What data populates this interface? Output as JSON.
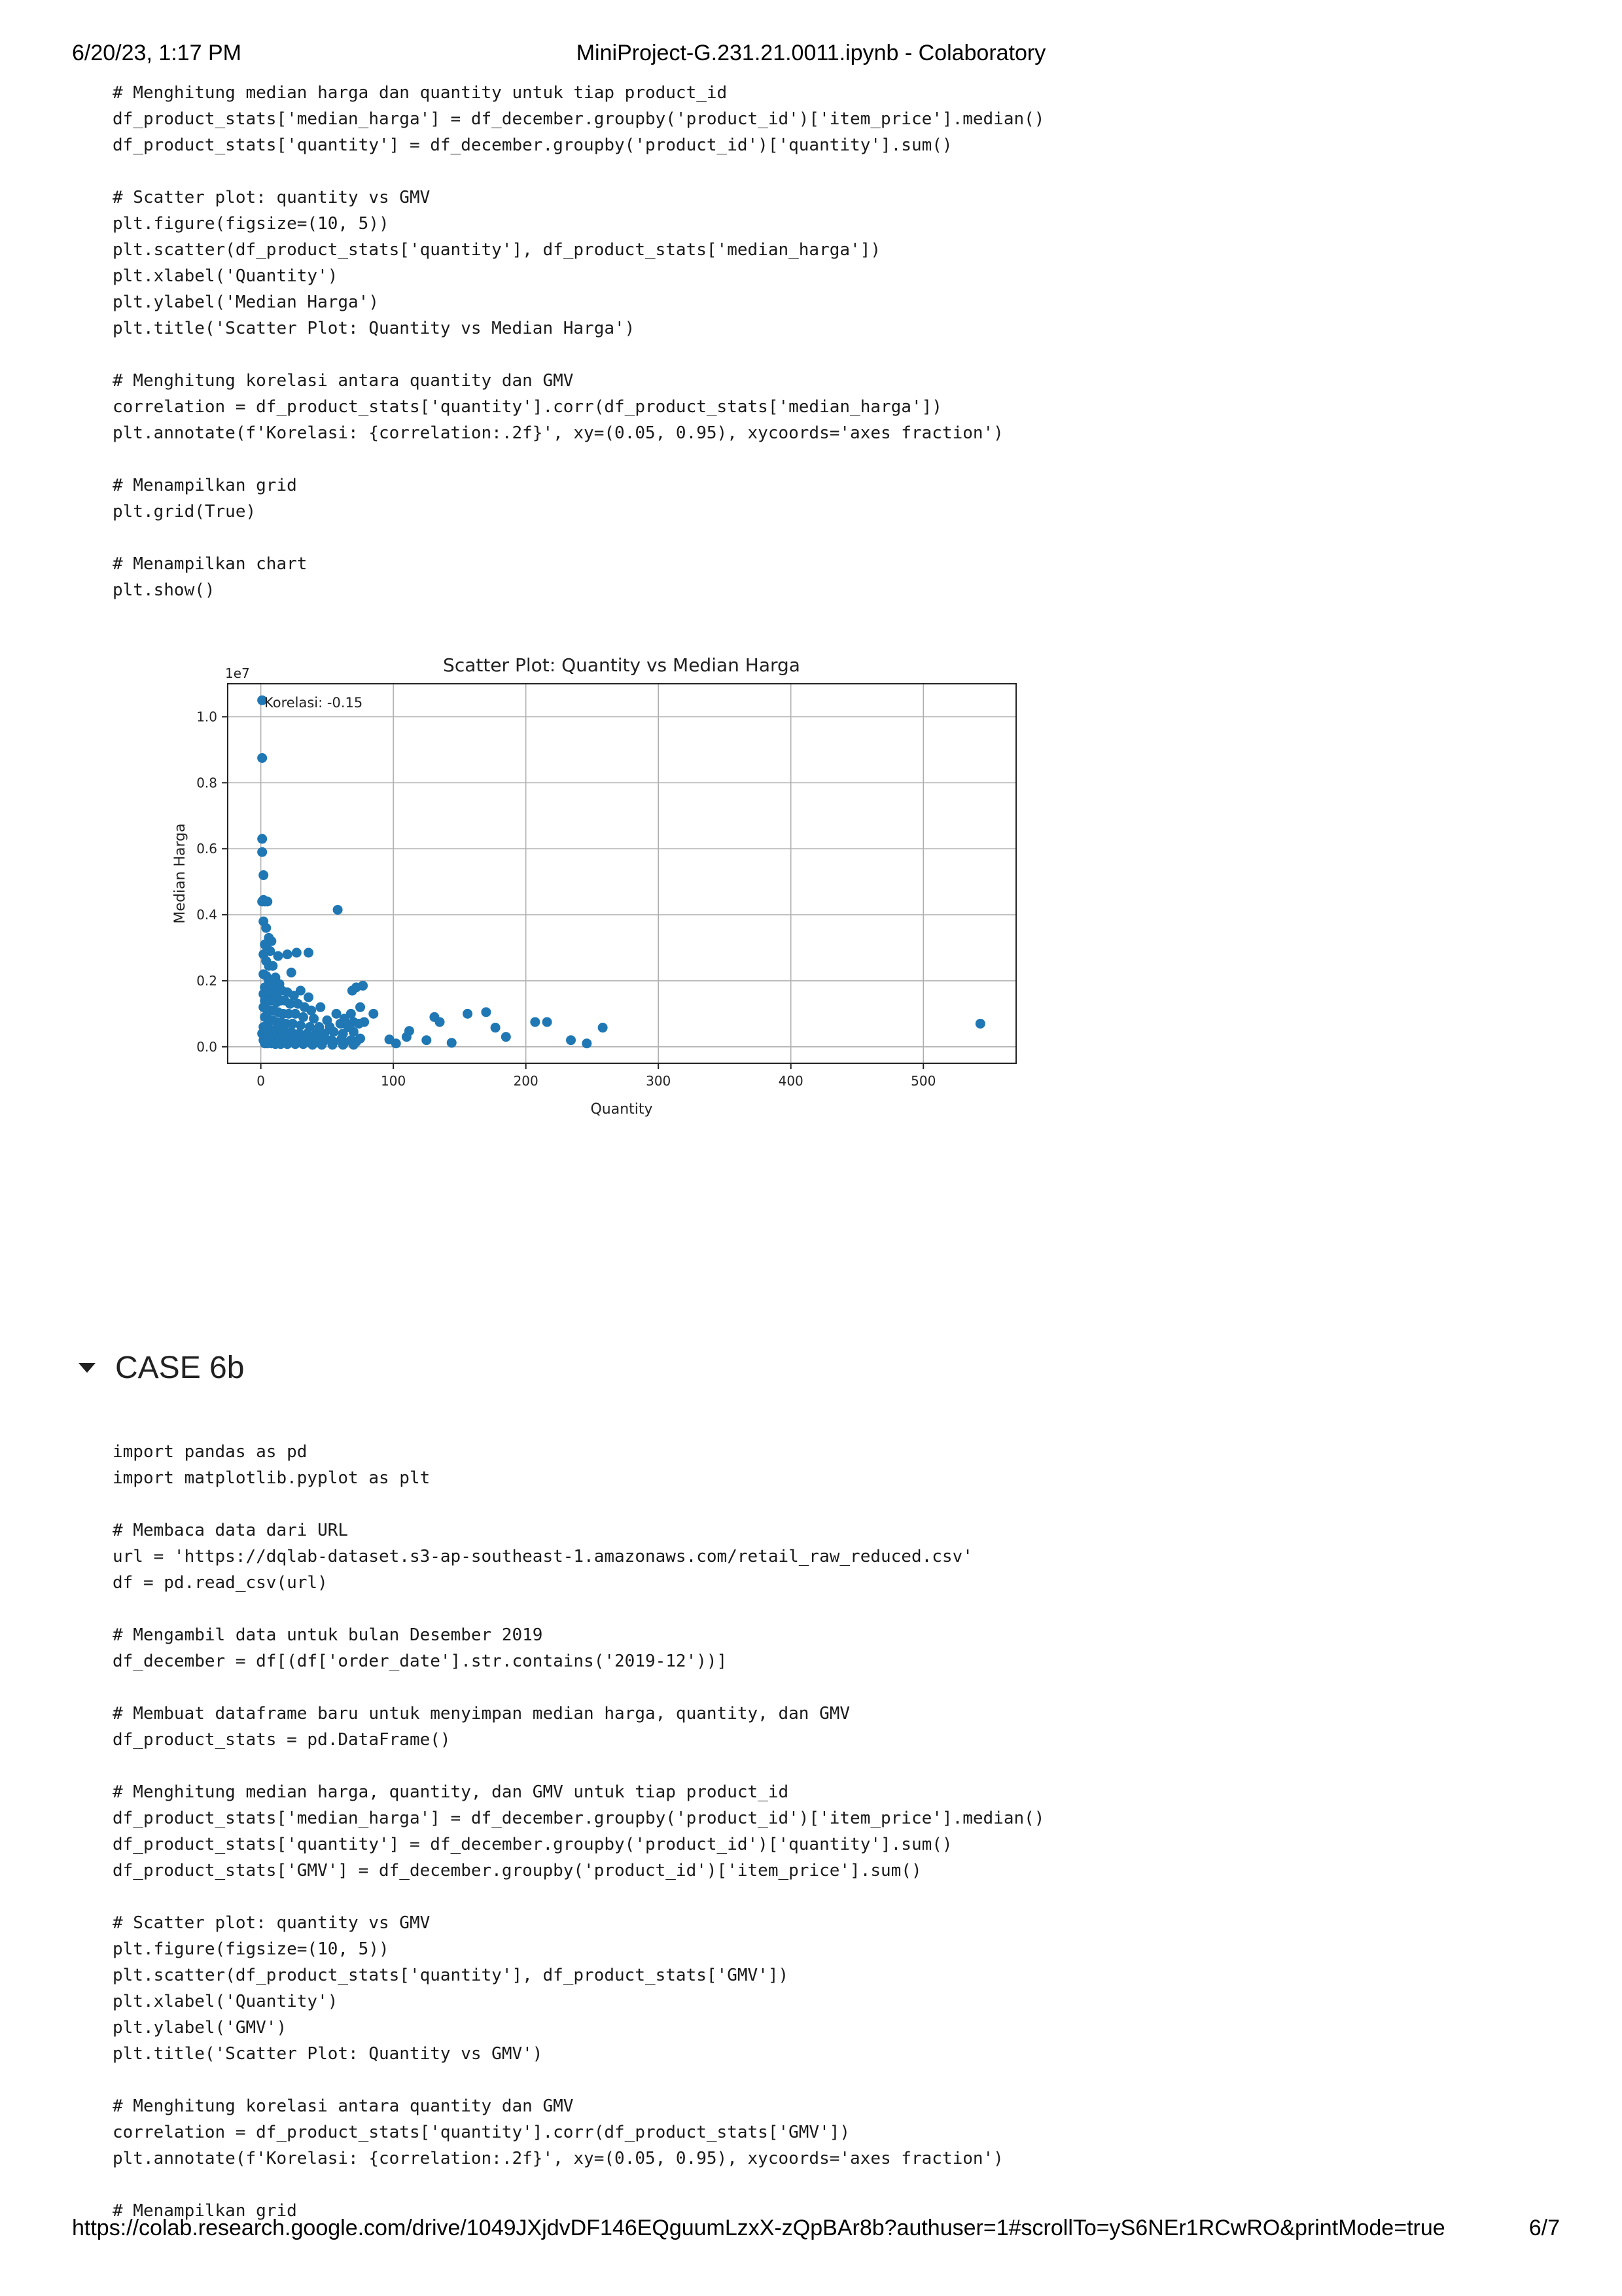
{
  "print_header": {
    "datetime": "6/20/23, 1:17 PM",
    "title": "MiniProject-G.231.21.0011.ipynb - Colaboratory"
  },
  "print_footer": {
    "url": "https://colab.research.google.com/drive/1049JXjdvDF146EQguumLzxX-zQpBAr8b?authuser=1#scrollTo=yS6NEr1RCwRO&printMode=true",
    "page": "6/7"
  },
  "cell1": {
    "code": "# Menghitung median harga dan quantity untuk tiap product_id\ndf_product_stats['median_harga'] = df_december.groupby('product_id')['item_price'].median()\ndf_product_stats['quantity'] = df_december.groupby('product_id')['quantity'].sum()\n\n# Scatter plot: quantity vs GMV\nplt.figure(figsize=(10, 5))\nplt.scatter(df_product_stats['quantity'], df_product_stats['median_harga'])\nplt.xlabel('Quantity')\nplt.ylabel('Median Harga')\nplt.title('Scatter Plot: Quantity vs Median Harga')\n\n# Menghitung korelasi antara quantity dan GMV\ncorrelation = df_product_stats['quantity'].corr(df_product_stats['median_harga'])\nplt.annotate(f'Korelasi: {correlation:.2f}', xy=(0.05, 0.95), xycoords='axes fraction')\n\n# Menampilkan grid\nplt.grid(True)\n\n# Menampilkan chart\nplt.show()"
  },
  "section": {
    "title": "CASE 6b",
    "caret_icon": "caret-down-icon"
  },
  "cell2": {
    "code": "import pandas as pd\nimport matplotlib.pyplot as plt\n\n# Membaca data dari URL\nurl = 'https://dqlab-dataset.s3-ap-southeast-1.amazonaws.com/retail_raw_reduced.csv'\ndf = pd.read_csv(url)\n\n# Mengambil data untuk bulan Desember 2019\ndf_december = df[(df['order_date'].str.contains('2019-12'))]\n\n# Membuat dataframe baru untuk menyimpan median harga, quantity, dan GMV\ndf_product_stats = pd.DataFrame()\n\n# Menghitung median harga, quantity, dan GMV untuk tiap product_id\ndf_product_stats['median_harga'] = df_december.groupby('product_id')['item_price'].median()\ndf_product_stats['quantity'] = df_december.groupby('product_id')['quantity'].sum()\ndf_product_stats['GMV'] = df_december.groupby('product_id')['item_price'].sum()\n\n# Scatter plot: quantity vs GMV\nplt.figure(figsize=(10, 5))\nplt.scatter(df_product_stats['quantity'], df_product_stats['GMV'])\nplt.xlabel('Quantity')\nplt.ylabel('GMV')\nplt.title('Scatter Plot: Quantity vs GMV')\n\n# Menghitung korelasi antara quantity dan GMV\ncorrelation = df_product_stats['quantity'].corr(df_product_stats['GMV'])\nplt.annotate(f'Korelasi: {correlation:.2f}', xy=(0.05, 0.95), xycoords='axes fraction')\n\n# Menampilkan grid"
  },
  "chart_data": {
    "type": "scatter",
    "title": "Scatter Plot: Quantity vs Median Harga",
    "xlabel": "Quantity",
    "ylabel": "Median Harga",
    "offset_text": "1e7",
    "annotation": "Korelasi: -0.15",
    "xlim": [
      -25,
      570
    ],
    "ylim": [
      -0.05,
      1.1
    ],
    "xticks": [
      0,
      100,
      200,
      300,
      400,
      500
    ],
    "yticks": [
      0.0,
      0.2,
      0.4,
      0.6,
      0.8,
      1.0
    ],
    "ytick_labels": [
      "0.0",
      "0.2",
      "0.4",
      "0.6",
      "0.8",
      "1.0"
    ],
    "grid": true,
    "marker_color": "#1f77b4",
    "series": [
      {
        "x": [
          1,
          1,
          1,
          1,
          2,
          2,
          1,
          3,
          5,
          58,
          2,
          4,
          6,
          8,
          3,
          5,
          2,
          7,
          13,
          20,
          27,
          36,
          4,
          6,
          9,
          23,
          2,
          4,
          6,
          8,
          11,
          14,
          3,
          5,
          7,
          10,
          13,
          2,
          4,
          6,
          8,
          12,
          16,
          20,
          25,
          30,
          36,
          45,
          69,
          72,
          77,
          3,
          5,
          7,
          9,
          12,
          15,
          18,
          22,
          28,
          33,
          38,
          63,
          68,
          75,
          85,
          2,
          4,
          6,
          8,
          10,
          13,
          17,
          21,
          26,
          32,
          40,
          50,
          57,
          64,
          70,
          78,
          3,
          5,
          7,
          9,
          12,
          15,
          19,
          24,
          30,
          37,
          44,
          52,
          60,
          66,
          74,
          2,
          4,
          6,
          8,
          10,
          14,
          18,
          23,
          29,
          35,
          42,
          48,
          55,
          62,
          70,
          1,
          3,
          5,
          7,
          9,
          12,
          16,
          20,
          25,
          31,
          38,
          45,
          53,
          61,
          68,
          75,
          2,
          4,
          6,
          9,
          13,
          17,
          22,
          27,
          33,
          40,
          47,
          55,
          63,
          72,
          3,
          5,
          8,
          11,
          15,
          20,
          26,
          32,
          39,
          46,
          54,
          62,
          70,
          97,
          102,
          110,
          112,
          125,
          131,
          135,
          144,
          156,
          170,
          177,
          185,
          207,
          216,
          234,
          246,
          258,
          543
        ],
        "y": [
          1.05,
          0.875,
          0.63,
          0.59,
          0.52,
          0.445,
          0.44,
          0.44,
          0.44,
          0.415,
          0.38,
          0.36,
          0.33,
          0.32,
          0.31,
          0.295,
          0.28,
          0.29,
          0.275,
          0.28,
          0.285,
          0.285,
          0.26,
          0.245,
          0.245,
          0.225,
          0.22,
          0.215,
          0.2,
          0.2,
          0.21,
          0.19,
          0.18,
          0.17,
          0.175,
          0.175,
          0.17,
          0.16,
          0.16,
          0.16,
          0.155,
          0.16,
          0.17,
          0.165,
          0.155,
          0.17,
          0.15,
          0.12,
          0.17,
          0.18,
          0.185,
          0.14,
          0.14,
          0.14,
          0.14,
          0.135,
          0.14,
          0.14,
          0.13,
          0.13,
          0.12,
          0.11,
          0.085,
          0.1,
          0.12,
          0.1,
          0.12,
          0.115,
          0.11,
          0.11,
          0.11,
          0.105,
          0.1,
          0.1,
          0.1,
          0.09,
          0.085,
          0.08,
          0.1,
          0.07,
          0.075,
          0.075,
          0.09,
          0.085,
          0.08,
          0.08,
          0.075,
          0.075,
          0.07,
          0.07,
          0.065,
          0.06,
          0.06,
          0.06,
          0.07,
          0.06,
          0.07,
          0.06,
          0.06,
          0.055,
          0.05,
          0.05,
          0.05,
          0.045,
          0.045,
          0.04,
          0.04,
          0.04,
          0.04,
          0.045,
          0.04,
          0.045,
          0.04,
          0.04,
          0.035,
          0.035,
          0.03,
          0.03,
          0.03,
          0.03,
          0.025,
          0.025,
          0.025,
          0.02,
          0.02,
          0.025,
          0.02,
          0.025,
          0.02,
          0.02,
          0.02,
          0.015,
          0.015,
          0.015,
          0.015,
          0.012,
          0.012,
          0.012,
          0.015,
          0.015,
          0.012,
          0.015,
          0.01,
          0.01,
          0.01,
          0.008,
          0.008,
          0.008,
          0.008,
          0.008,
          0.006,
          0.006,
          0.006,
          0.006,
          0.006,
          0.022,
          0.01,
          0.03,
          0.048,
          0.02,
          0.09,
          0.075,
          0.012,
          0.1,
          0.105,
          0.058,
          0.03,
          0.075,
          0.075,
          0.02,
          0.01,
          0.058,
          0.07
        ]
      }
    ]
  }
}
